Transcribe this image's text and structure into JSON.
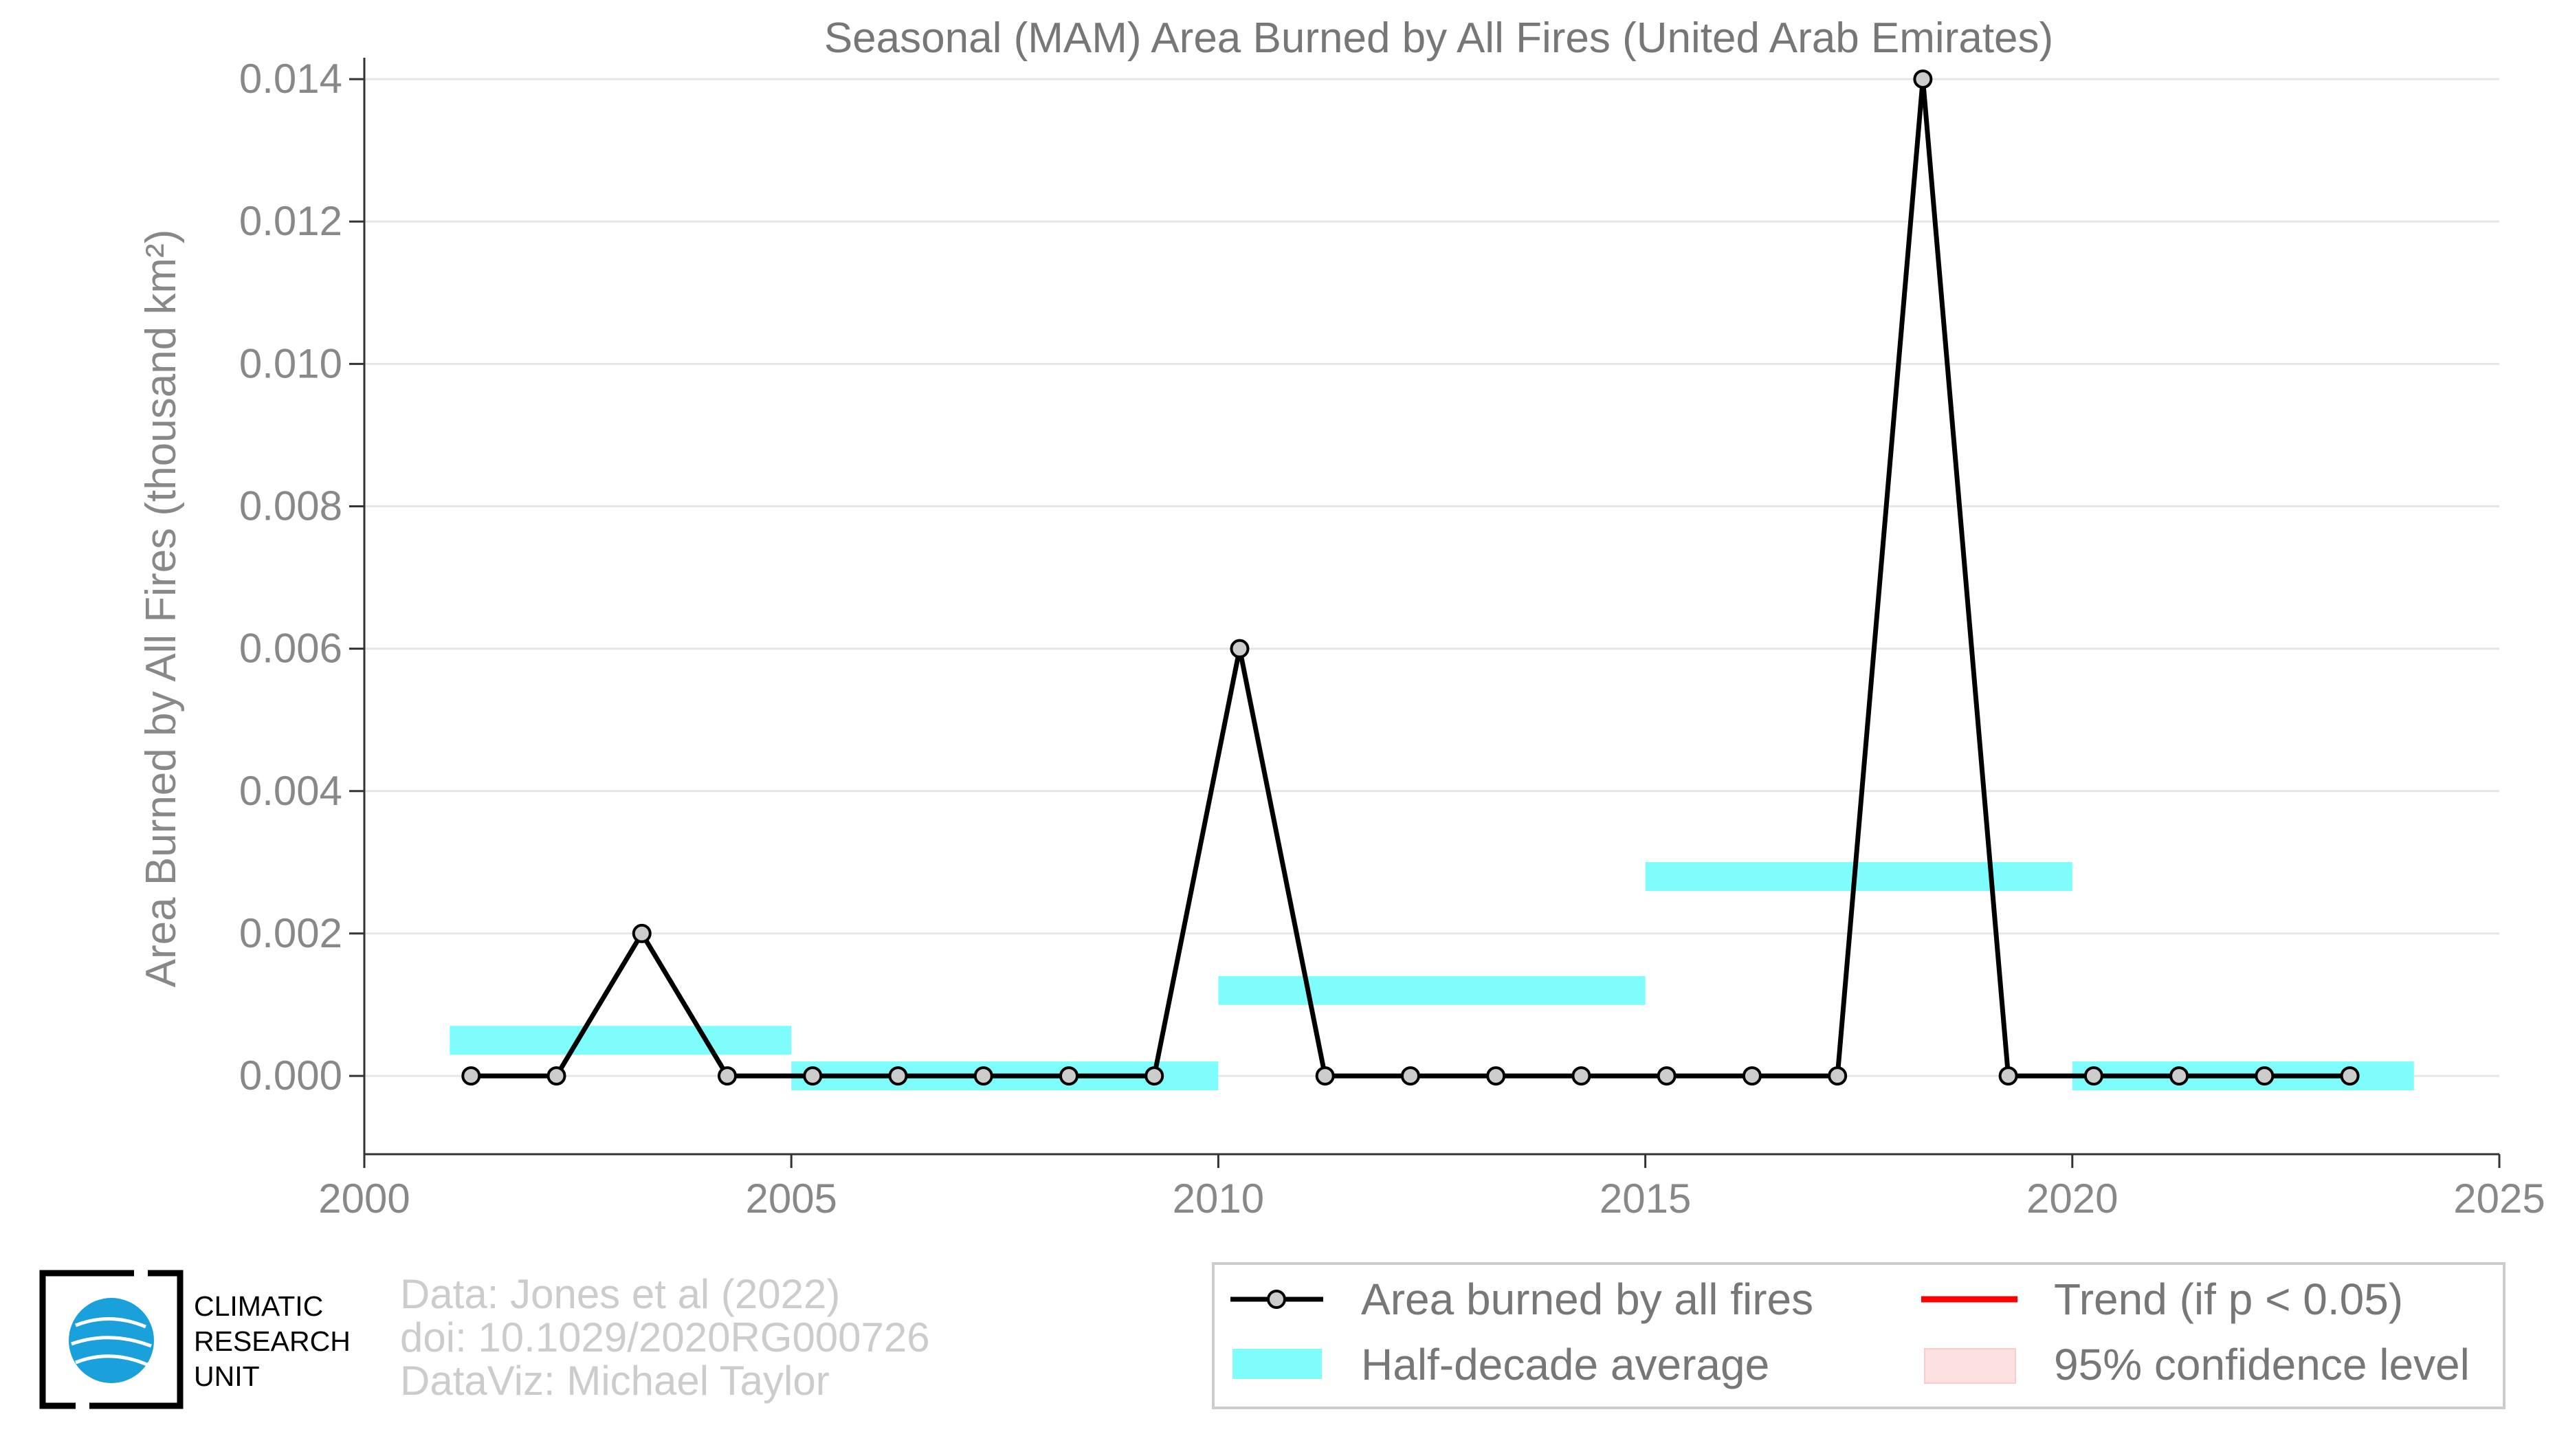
{
  "chart_data": {
    "type": "line",
    "title": "Seasonal (MAM) Area Burned by All Fires (United Arab Emirates)",
    "xlabel": "",
    "ylabel": "Area Burned by All Fires (thousand km²)",
    "xlim": [
      2000,
      2025
    ],
    "ylim": [
      -0.0011,
      0.0143
    ],
    "x_ticks": [
      "2000",
      "2005",
      "2010",
      "2015",
      "2020",
      "2025"
    ],
    "y_ticks": [
      "0.000",
      "0.002",
      "0.004",
      "0.006",
      "0.008",
      "0.010",
      "0.012",
      "0.014"
    ],
    "grid": "horizontal",
    "series": [
      {
        "name": "Area burned by all fires",
        "color": "#000000",
        "x": [
          2001,
          2002,
          2003,
          2004,
          2005,
          2006,
          2007,
          2008,
          2009,
          2010,
          2011,
          2012,
          2013,
          2014,
          2015,
          2016,
          2017,
          2018,
          2019,
          2020,
          2021,
          2022,
          2023
        ],
        "values": [
          0,
          0,
          0.002,
          0,
          0,
          0,
          0,
          0,
          0,
          0.006,
          0,
          0,
          0,
          0,
          0,
          0,
          0,
          0.014,
          0,
          0,
          0,
          0,
          0
        ]
      }
    ],
    "half_decade_average": {
      "name": "Half-decade average",
      "color": "#7ffdfd",
      "segments": [
        {
          "start": 2001,
          "end": 2005,
          "value": 0.0005
        },
        {
          "start": 2005,
          "end": 2010,
          "value": 0.0
        },
        {
          "start": 2010,
          "end": 2015,
          "value": 0.0012
        },
        {
          "start": 2015,
          "end": 2020,
          "value": 0.0028
        },
        {
          "start": 2020,
          "end": 2024,
          "value": 0.0
        }
      ]
    },
    "legend": {
      "placement": "bottom-right",
      "items": [
        {
          "label": "Area burned by all fires",
          "symbol": "line-marker",
          "color": "#000000"
        },
        {
          "label": "Trend (if p < 0.05)",
          "symbol": "line",
          "color": "#ff0000"
        },
        {
          "label": "Half-decade average",
          "symbol": "band",
          "color": "#7ffdfd"
        },
        {
          "label": "95% confidence level",
          "symbol": "band",
          "color": "#fde0e0"
        }
      ]
    }
  },
  "credits": {
    "line1": "Data: Jones et al (2022)",
    "line2": "doi: 10.1029/2020RG000726",
    "line3": "DataViz: Michael Taylor"
  },
  "logo": {
    "line1": "CLIMATIC",
    "line2": "RESEARCH",
    "line3": "UNIT"
  }
}
